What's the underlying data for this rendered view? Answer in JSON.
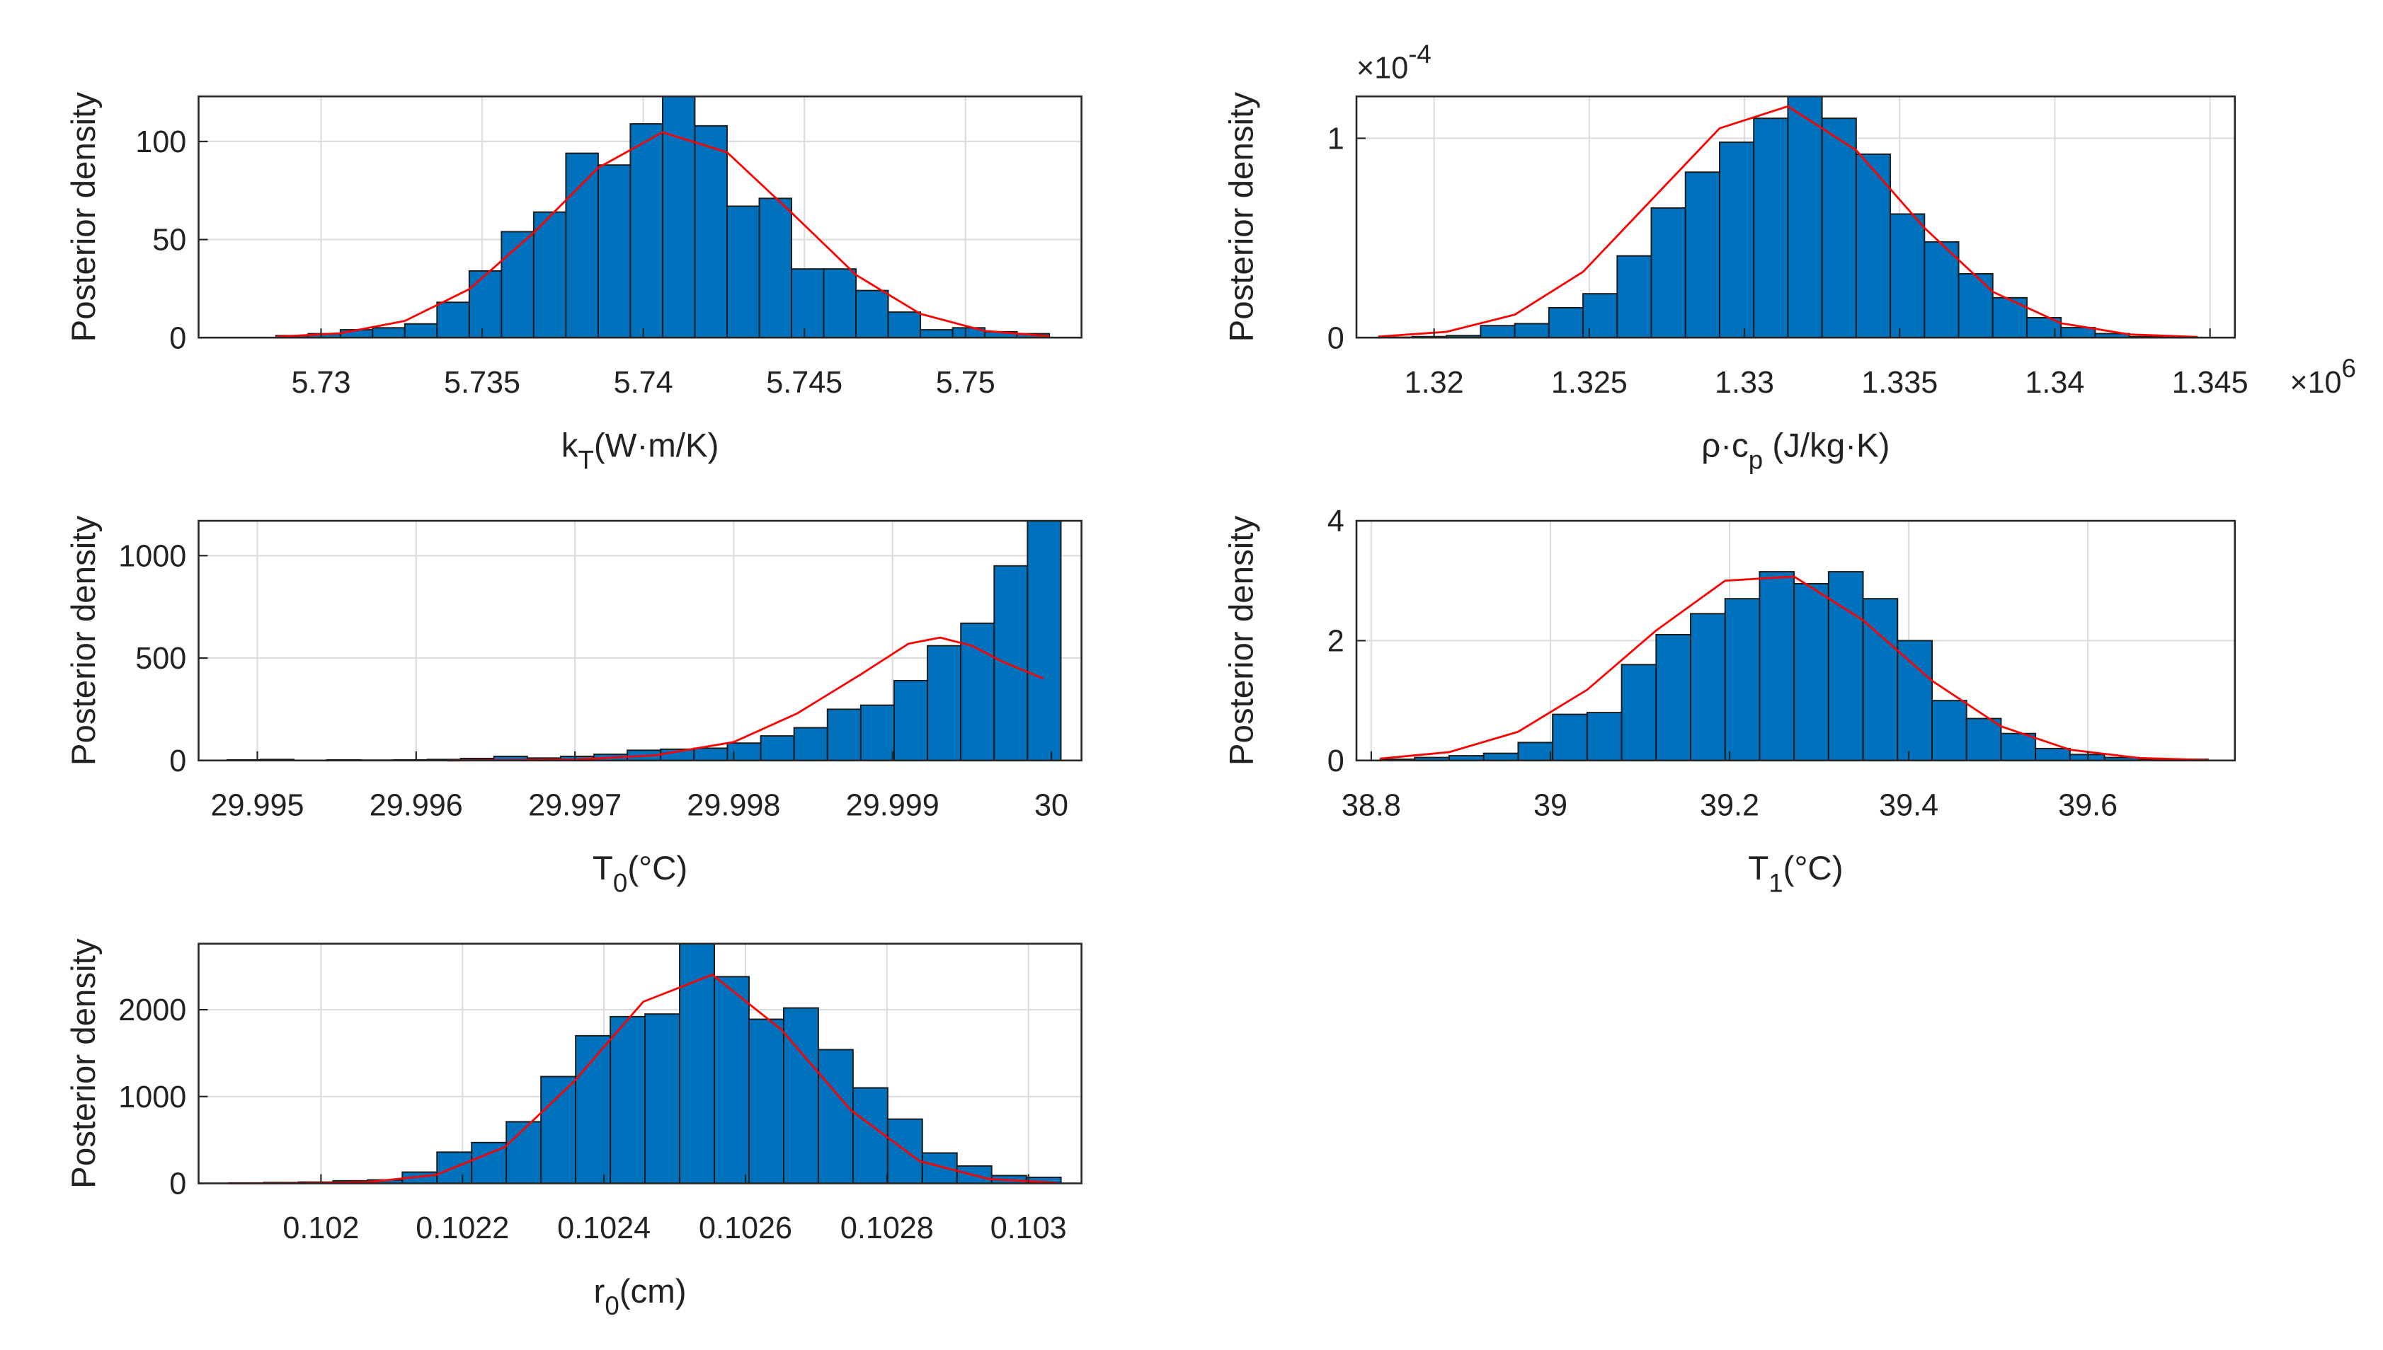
{
  "chart_data": [
    {
      "type": "histogram",
      "color": "#0072bd",
      "grid": true,
      "ylabel": "Posterior density",
      "xlabel": {
        "base": "k",
        "sub": "T",
        "unit": "(W·m/K)"
      },
      "bins": [
        5.7286,
        5.7296,
        5.7306,
        5.7316,
        5.7326,
        5.7336,
        5.7346,
        5.7356,
        5.7366,
        5.7376,
        5.7386,
        5.7396,
        5.7406,
        5.7416,
        5.7426,
        5.7436,
        5.7446,
        5.7456,
        5.7466,
        5.7476,
        5.7486,
        5.7496,
        5.7506,
        5.7516,
        5.7526
      ],
      "values": [
        1,
        2,
        4,
        5,
        7,
        18,
        34,
        54,
        64,
        94,
        88,
        109,
        123,
        108,
        67,
        71,
        35,
        35,
        24,
        13,
        4,
        5,
        3,
        2
      ],
      "fit": {
        "color": "#ff0000",
        "x": [
          5.7286,
          5.7306,
          5.7326,
          5.7346,
          5.7366,
          5.7386,
          5.7406,
          5.7426,
          5.7446,
          5.7466,
          5.7486,
          5.7506,
          5.7526
        ],
        "values": [
          0.4,
          2.2,
          8.5,
          24.7,
          53.5,
          86.6,
          104.7,
          94.5,
          63.7,
          32,
          12.1,
          3.4,
          0.7
        ]
      },
      "xlim": [
        5.7262,
        5.7536
      ],
      "xticks": [
        5.73,
        5.735,
        5.74,
        5.745,
        5.75
      ],
      "ylim": [
        0,
        123
      ],
      "yticks": [
        0,
        50,
        100
      ]
    },
    {
      "type": "histogram",
      "color": "#0072bd",
      "grid": true,
      "ylabel": "Posterior density",
      "xlabel": {
        "base": "ρ·c",
        "sub": "p",
        "unit": " (J/kg·K)"
      },
      "exponent_base": "×10",
      "yexponent": "-4",
      "xexponent": "6",
      "bins": [
        1.3182,
        1.3193,
        1.3204,
        1.3215,
        1.3226,
        1.3237,
        1.3248,
        1.3259,
        1.327,
        1.3281,
        1.3292,
        1.3303,
        1.3314,
        1.3325,
        1.3336,
        1.3347,
        1.3358,
        1.3369,
        1.338,
        1.3391,
        1.3402,
        1.3413,
        1.3424,
        1.3435,
        1.3446
      ],
      "values": [
        0.002,
        0.005,
        0.01,
        0.06,
        0.07,
        0.15,
        0.22,
        0.41,
        0.65,
        0.83,
        0.98,
        1.1,
        1.21,
        1.1,
        0.92,
        0.62,
        0.48,
        0.32,
        0.2,
        0.1,
        0.05,
        0.02,
        0.005,
        0.002
      ],
      "fit": {
        "color": "#ff0000",
        "x": [
          1.3182,
          1.3204,
          1.3226,
          1.3248,
          1.327,
          1.3292,
          1.3314,
          1.3336,
          1.3358,
          1.338,
          1.3402,
          1.3424,
          1.3446
        ],
        "values": [
          0.005,
          0.029,
          0.115,
          0.33,
          0.69,
          1.05,
          1.16,
          0.94,
          0.55,
          0.23,
          0.072,
          0.016,
          0.003
        ]
      },
      "xlim": [
        1.3175,
        1.3458
      ],
      "xticks": [
        1.32,
        1.325,
        1.33,
        1.335,
        1.34,
        1.345
      ],
      "ylim": [
        0,
        1.21
      ],
      "yticks": [
        0,
        1
      ]
    },
    {
      "type": "histogram",
      "color": "#0072bd",
      "grid": true,
      "ylabel": "Posterior density",
      "xlabel": {
        "base": "T",
        "sub": "0",
        "unit": "(°C)"
      },
      "bins": [
        29.99481,
        29.99502,
        29.99523,
        29.99544,
        29.99565,
        29.99586,
        29.99607,
        29.99628,
        29.99649,
        29.9967,
        29.99691,
        29.99712,
        29.99733,
        29.99754,
        29.99775,
        29.99796,
        29.99817,
        29.99838,
        29.99859,
        29.9988,
        29.99901,
        29.99922,
        29.99943,
        29.99964,
        29.99985,
        30.00006
      ],
      "values": [
        3,
        5,
        1,
        3,
        2,
        3,
        5,
        10,
        20,
        12,
        20,
        30,
        50,
        55,
        60,
        85,
        120,
        160,
        250,
        270,
        390,
        560,
        670,
        950,
        1170
      ],
      "fit": {
        "color": "#ff0000",
        "x": [
          29.9962,
          29.997,
          29.9975,
          29.998,
          29.9984,
          29.9988,
          29.9991,
          29.9993,
          29.9995,
          29.9997,
          29.99995
        ],
        "values": [
          0,
          5,
          25,
          90,
          230,
          420,
          570,
          600,
          560,
          480,
          400
        ]
      },
      "xlim": [
        29.99463,
        30.00019
      ],
      "xticks": [
        29.995,
        29.996,
        29.997,
        29.998,
        29.999,
        30
      ],
      "ylim": [
        0,
        1170
      ],
      "yticks": [
        0,
        500,
        1000
      ]
    },
    {
      "type": "histogram",
      "color": "#0072bd",
      "grid": true,
      "ylabel": "Posterior density",
      "xlabel": {
        "base": "T",
        "sub": "1",
        "unit": "(°C)"
      },
      "bins": [
        38.81,
        38.8485,
        38.887,
        38.9255,
        38.964,
        39.0025,
        39.041,
        39.0795,
        39.118,
        39.1565,
        39.195,
        39.2335,
        39.272,
        39.3105,
        39.349,
        39.3875,
        39.426,
        39.4645,
        39.503,
        39.5415,
        39.58,
        39.6185,
        39.657,
        39.6955,
        39.734
      ],
      "values": [
        0.02,
        0.05,
        0.08,
        0.12,
        0.3,
        0.77,
        0.8,
        1.6,
        2.1,
        2.45,
        2.7,
        3.15,
        2.95,
        3.15,
        2.7,
        2.0,
        1.0,
        0.7,
        0.45,
        0.2,
        0.1,
        0.05,
        0.02,
        0.02
      ],
      "fit": {
        "color": "#ff0000",
        "x": [
          38.81,
          38.887,
          38.964,
          39.041,
          39.118,
          39.195,
          39.272,
          39.349,
          39.426,
          39.503,
          39.58,
          39.657,
          39.734
        ],
        "values": [
          0.032,
          0.14,
          0.48,
          1.18,
          2.17,
          3.0,
          3.07,
          2.34,
          1.33,
          0.57,
          0.18,
          0.042,
          0.007
        ]
      },
      "xlim": [
        38.7835,
        39.764
      ],
      "xticks": [
        38.8,
        39,
        39.2,
        39.4,
        39.6
      ],
      "ylim": [
        0,
        4
      ],
      "yticks": [
        0,
        2,
        4
      ]
    },
    {
      "type": "histogram",
      "color": "#0072bd",
      "grid": true,
      "ylabel": "Posterior density",
      "xlabel": {
        "base": "r",
        "sub": "0",
        "unit": "(cm)"
      },
      "bins": [
        0.10187,
        0.101919,
        0.101968,
        0.102017,
        0.102066,
        0.102115,
        0.102164,
        0.102213,
        0.102262,
        0.102311,
        0.10236,
        0.102409,
        0.102458,
        0.102507,
        0.102556,
        0.102605,
        0.102654,
        0.102703,
        0.102752,
        0.102801,
        0.10285,
        0.102899,
        0.102948,
        0.102997,
        0.103046
      ],
      "values": [
        5,
        10,
        15,
        30,
        40,
        130,
        360,
        470,
        710,
        1230,
        1700,
        1920,
        1950,
        2760,
        2380,
        1890,
        2020,
        1540,
        1100,
        740,
        350,
        200,
        90,
        70
      ],
      "fit": {
        "color": "#ff0000",
        "x": [
          0.10187,
          0.1019676,
          0.1020652,
          0.1021628,
          0.1022604,
          0.102358,
          0.1024556,
          0.1025532,
          0.1026508,
          0.1027484,
          0.102846,
          0.1029436,
          0.1030412
        ],
        "values": [
          0.1,
          1.4,
          14,
          98,
          420,
          1176,
          2092,
          2403,
          1770,
          847,
          257,
          51,
          6
        ]
      },
      "xlim": [
        0.101827,
        0.103075
      ],
      "xticks": [
        0.102,
        0.1022,
        0.1024,
        0.1026,
        0.1028,
        0.103
      ],
      "ylim": [
        0,
        2760
      ],
      "yticks": [
        0,
        1000,
        2000
      ]
    }
  ]
}
